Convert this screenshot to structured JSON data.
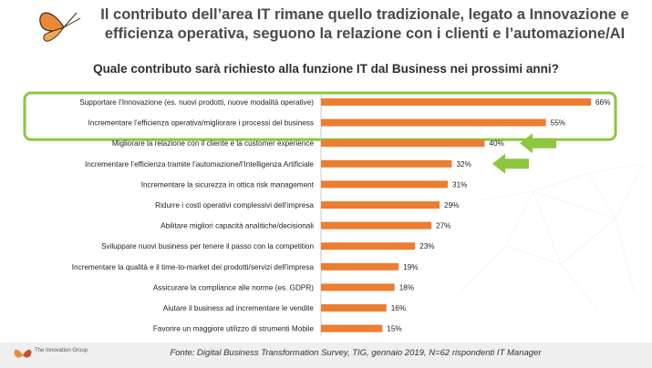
{
  "title": {
    "line1": "Il contributo dell’area IT rimane quello tradizionale, legato a Innovazione e",
    "line2": "efficienza operativa, seguono la relazione con i clienti e l’automazione/AI"
  },
  "colors": {
    "bar": "#ED7D31",
    "highlight": "#8DC63F",
    "arrow": "#8DC63F"
  },
  "chart_data": {
    "type": "bar",
    "orientation": "horizontal",
    "title": "Quale contributo sarà richiesto alla funzione IT dal Business nei prossimi anni?",
    "categories": [
      "Supportare l’Innovazione (es. nuovi prodotti, nuove modalità operative)",
      "Incrementare l’efficienza operativa/migliorare i processi del business",
      "Migliorare la relazione con il cliente e la customer experience",
      "Incrementare l’efficienza tramite l’automazione/l’Intelligenza Artificiale",
      "Incrementare la sicurezza in ottica risk management",
      "Ridurre i costi operativi complessivi dell’impresa",
      "Abilitare migliori capacità analitiche/decisionali",
      "Sviluppare nuovi business per tenere il passo con la competition",
      "Incrementare la qualità e il time-to-market dei prodotti/servizi dell’impresa",
      "Assicurare la compliance alle norme (es. GDPR)",
      "Aiutare il business ad incrementare le vendite",
      "Favorire un maggiore utilizzo di strumenti Mobile"
    ],
    "values": [
      66,
      55,
      40,
      32,
      31,
      29,
      27,
      23,
      19,
      18,
      16,
      15
    ],
    "value_labels": [
      "66%",
      "55%",
      "40%",
      "32%",
      "31%",
      "29%",
      "27%",
      "23%",
      "19%",
      "18%",
      "16%",
      "15%"
    ],
    "highlighted": [
      0,
      1
    ],
    "arrows": [
      2,
      3
    ],
    "xlim": [
      0,
      66
    ]
  },
  "footer": {
    "source": "Fonte: Digital Business Transformation Survey, TIG, gennaio 2019, N=62 rispondenti IT Manager",
    "logo": "The Innovation Group"
  }
}
